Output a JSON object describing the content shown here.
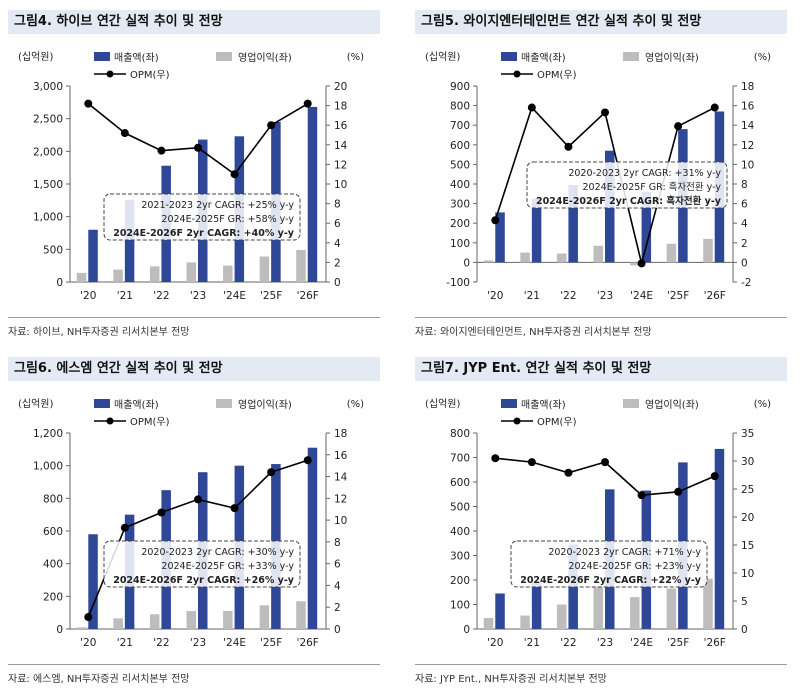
{
  "colors": {
    "revenue": "#2e4797",
    "op": "#bdbdbd",
    "opm": "#000000",
    "panel_title_bg": "#e4eaf3"
  },
  "charts": [
    {
      "title": "그림4. 하이브 연간 실적 추이 및 전망",
      "source": "자료: 하이브, NH투자증권 리서치본부 전망",
      "chart_data": {
        "type": "bar",
        "categories": [
          "'20",
          "'21",
          "'22",
          "'23",
          "'24E",
          "'25F",
          "'26F"
        ],
        "ylabel": "(십억원)",
        "y2label": "(%)",
        "ylim": [
          0,
          3000
        ],
        "yticks": [
          0,
          500,
          1000,
          1500,
          2000,
          2500,
          3000
        ],
        "yticklabels": [
          "0",
          "500",
          "1,000",
          "1,500",
          "2,000",
          "2,500",
          "3,000"
        ],
        "y2lim": [
          0,
          20
        ],
        "y2ticks": [
          0,
          2,
          4,
          6,
          8,
          10,
          12,
          14,
          16,
          18,
          20
        ],
        "series": [
          {
            "name": "매출액(좌)",
            "kind": "bar",
            "axis": "left",
            "values": [
              800,
              1260,
              1780,
              2180,
              2230,
              2450,
              2680
            ]
          },
          {
            "name": "영업이익(좌)",
            "kind": "bar",
            "axis": "left",
            "values": [
              140,
              190,
              240,
              300,
              250,
              390,
              490
            ]
          },
          {
            "name": "OPM(우)",
            "kind": "line",
            "axis": "right",
            "values": [
              18.2,
              15.2,
              13.4,
              13.7,
              11.0,
              16.0,
              18.2
            ]
          }
        ],
        "annotation": [
          "2021-2023 2yr CAGR: +25% y-y",
          "2024E-2025F GR: +58% y-y",
          "2024E-2026F 2yr CAGR: +40% y-y"
        ],
        "grid": false,
        "legend": "top"
      }
    },
    {
      "title": "그림5. 와이지엔터테인먼트 연간 실적 추이 및 전망",
      "source": "자료: 와이지엔터테인먼트, NH투자증권 리서치본부 전망",
      "chart_data": {
        "type": "bar",
        "categories": [
          "'20",
          "'21",
          "'22",
          "'23",
          "'24E",
          "'25F",
          "'26F"
        ],
        "ylabel": "(십억원)",
        "y2label": "(%)",
        "ylim": [
          -100,
          900
        ],
        "yticks": [
          -100,
          0,
          100,
          200,
          300,
          400,
          500,
          600,
          700,
          800,
          900
        ],
        "yticklabels": [
          "-100",
          "0",
          "100",
          "200",
          "300",
          "400",
          "500",
          "600",
          "700",
          "800",
          "900"
        ],
        "y2lim": [
          -2,
          18
        ],
        "y2ticks": [
          -2,
          0,
          2,
          4,
          6,
          8,
          10,
          12,
          14,
          16,
          18
        ],
        "series": [
          {
            "name": "매출액(좌)",
            "kind": "bar",
            "axis": "left",
            "values": [
              255,
              325,
              395,
              570,
              360,
              680,
              770
            ]
          },
          {
            "name": "영업이익(좌)",
            "kind": "bar",
            "axis": "left",
            "values": [
              10,
              50,
              45,
              85,
              -15,
              95,
              120
            ]
          },
          {
            "name": "OPM(우)",
            "kind": "line",
            "axis": "right",
            "values": [
              4.3,
              15.8,
              11.8,
              15.3,
              -0.1,
              13.9,
              15.8
            ]
          }
        ],
        "annotation": [
          "2020-2023 2yr CAGR: +31% y-y",
          "2024E-2025F GR: 흑자전환 y-y",
          "2024E-2026F 2yr CAGR: 흑자전환 y-y"
        ],
        "grid": false,
        "legend": "top"
      }
    },
    {
      "title": "그림6. 에스엠 연간 실적 추이 및 전망",
      "source": "자료: 에스엠, NH투자증권 리서치본부 전망",
      "chart_data": {
        "type": "bar",
        "categories": [
          "'20",
          "'21",
          "'22",
          "'23",
          "'24E",
          "'25F",
          "'26F"
        ],
        "ylabel": "(십억원)",
        "y2label": "(%)",
        "ylim": [
          0,
          1200
        ],
        "yticks": [
          0,
          200,
          400,
          600,
          800,
          1000,
          1200
        ],
        "yticklabels": [
          "0",
          "200",
          "400",
          "600",
          "800",
          "1,000",
          "1,200"
        ],
        "y2lim": [
          0,
          18
        ],
        "y2ticks": [
          0,
          2,
          4,
          6,
          8,
          10,
          12,
          14,
          16,
          18
        ],
        "series": [
          {
            "name": "매출액(좌)",
            "kind": "bar",
            "axis": "left",
            "values": [
              580,
              700,
              850,
              960,
              1000,
              1010,
              1110
            ]
          },
          {
            "name": "영업이익(좌)",
            "kind": "bar",
            "axis": "left",
            "values": [
              10,
              65,
              90,
              110,
              110,
              145,
              170
            ]
          },
          {
            "name": "OPM(우)",
            "kind": "line",
            "axis": "right",
            "values": [
              1.1,
              9.3,
              10.7,
              11.9,
              11.1,
              14.4,
              15.5
            ]
          }
        ],
        "annotation": [
          "2020-2023 2yr CAGR: +30% y-y",
          "2024E-2025F GR: +33% y-y",
          "2024E-2026F 2yr CAGR: +26% y-y"
        ],
        "grid": false,
        "legend": "top"
      }
    },
    {
      "title": "그림7. JYP Ent. 연간 실적 추이 및 전망",
      "source": "자료: JYP Ent., NH투자증권 리서치본부 전망",
      "chart_data": {
        "type": "bar",
        "categories": [
          "'20",
          "'21",
          "'22",
          "'23",
          "'24E",
          "'25F",
          "'26F"
        ],
        "ylabel": "(십억원)",
        "y2label": "(%)",
        "ylim": [
          0,
          800
        ],
        "yticks": [
          0,
          100,
          200,
          300,
          400,
          500,
          600,
          700,
          800
        ],
        "yticklabels": [
          "0",
          "100",
          "200",
          "300",
          "400",
          "500",
          "600",
          "700",
          "800"
        ],
        "y2lim": [
          0,
          35
        ],
        "y2ticks": [
          0,
          5,
          10,
          15,
          20,
          25,
          30,
          35
        ],
        "series": [
          {
            "name": "매출액(좌)",
            "kind": "bar",
            "axis": "left",
            "values": [
              145,
              195,
              345,
              570,
              565,
              680,
              735
            ]
          },
          {
            "name": "영업이익(좌)",
            "kind": "bar",
            "axis": "left",
            "values": [
              45,
              55,
              100,
              170,
              130,
              165,
              205
            ]
          },
          {
            "name": "OPM(우)",
            "kind": "line",
            "axis": "right",
            "values": [
              30.5,
              29.8,
              27.9,
              29.8,
              23.9,
              24.5,
              27.3
            ]
          }
        ],
        "annotation": [
          "2020-2023 2yr CAGR: +71% y-y",
          "2024E-2025F GR: +23% y-y",
          "2024E-2026F 2yr CAGR: +22% y-y"
        ],
        "grid": false,
        "legend": "top"
      }
    }
  ]
}
